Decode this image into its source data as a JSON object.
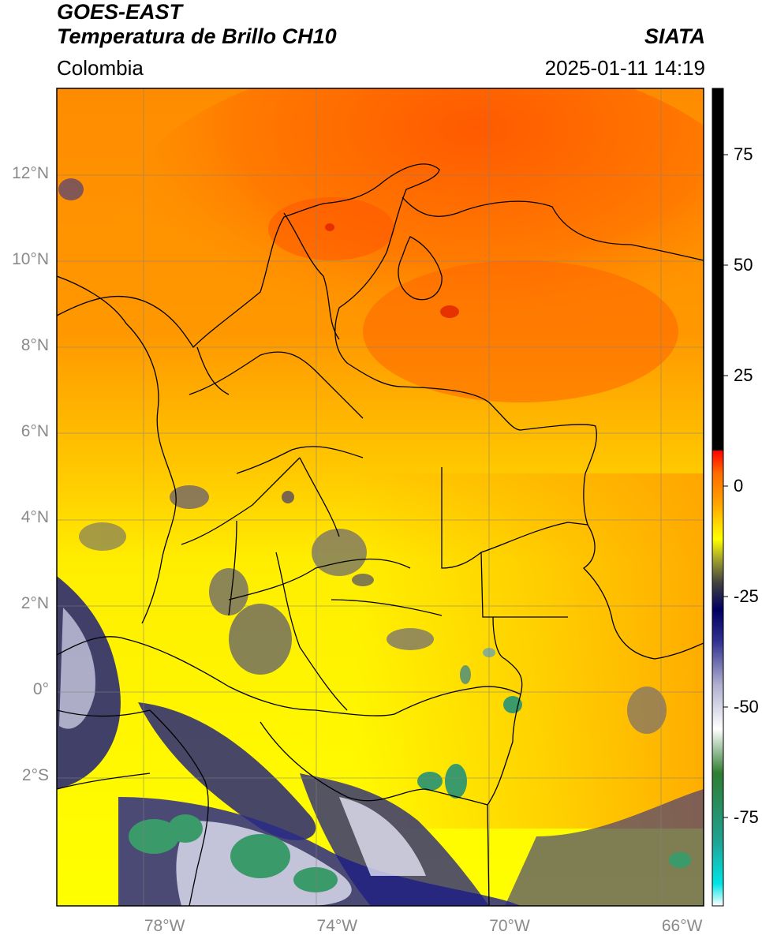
{
  "header": {
    "satellite": "GOES-EAST",
    "product": "Temperatura de Brillo CH10",
    "region": "Colombia",
    "agency": "SIATA",
    "datetime": "2025-01-11 14:19"
  },
  "map": {
    "projection": "PlateCarree",
    "extent_lon": [
      -80.5,
      -65.5
    ],
    "extent_lat": [
      -5,
      14
    ],
    "lat_ticks": [
      {
        "value": 12,
        "label": "12°N"
      },
      {
        "value": 10,
        "label": "10°N"
      },
      {
        "value": 8,
        "label": "8°N"
      },
      {
        "value": 6,
        "label": "6°N"
      },
      {
        "value": 4,
        "label": "4°N"
      },
      {
        "value": 2,
        "label": "2°N"
      },
      {
        "value": 0,
        "label": "0°"
      },
      {
        "value": -2,
        "label": "2°S"
      }
    ],
    "lon_ticks": [
      {
        "value": -78,
        "label": "78°W"
      },
      {
        "value": -74,
        "label": "74°W"
      },
      {
        "value": -70,
        "label": "70°W"
      },
      {
        "value": -66,
        "label": "66°W"
      }
    ],
    "gridlines": true,
    "field_colors": {
      "warm": "#ff6a00",
      "mid": "#ffa500",
      "cool": "#ffff00",
      "cold": "#202090",
      "coldest": "#3aa070"
    }
  },
  "colorbar": {
    "range": [
      -95,
      90
    ],
    "ticks": [
      {
        "value": 75,
        "label": "75"
      },
      {
        "value": 50,
        "label": "50"
      },
      {
        "value": 25,
        "label": "25"
      },
      {
        "value": 0,
        "label": "0"
      },
      {
        "value": -25,
        "label": "-25"
      },
      {
        "value": -50,
        "label": "-50"
      },
      {
        "value": -75,
        "label": "-75"
      }
    ],
    "stops": [
      {
        "value": -95,
        "color": "#ffffff"
      },
      {
        "value": -90,
        "color": "#00e5e5"
      },
      {
        "value": -80,
        "color": "#20a090"
      },
      {
        "value": -65,
        "color": "#2e7d32"
      },
      {
        "value": -55,
        "color": "#ffffff"
      },
      {
        "value": -45,
        "color": "#b0b0d0"
      },
      {
        "value": -35,
        "color": "#303090"
      },
      {
        "value": -28,
        "color": "#000060"
      },
      {
        "value": -22,
        "color": "#404040"
      },
      {
        "value": -17,
        "color": "#9a9a30"
      },
      {
        "value": -12,
        "color": "#ffff00"
      },
      {
        "value": -4,
        "color": "#ffa500"
      },
      {
        "value": 3,
        "color": "#ff6a00"
      },
      {
        "value": 8,
        "color": "#ff0000"
      },
      {
        "value": 8.01,
        "color": "#000000"
      },
      {
        "value": 90,
        "color": "#000000"
      }
    ]
  }
}
